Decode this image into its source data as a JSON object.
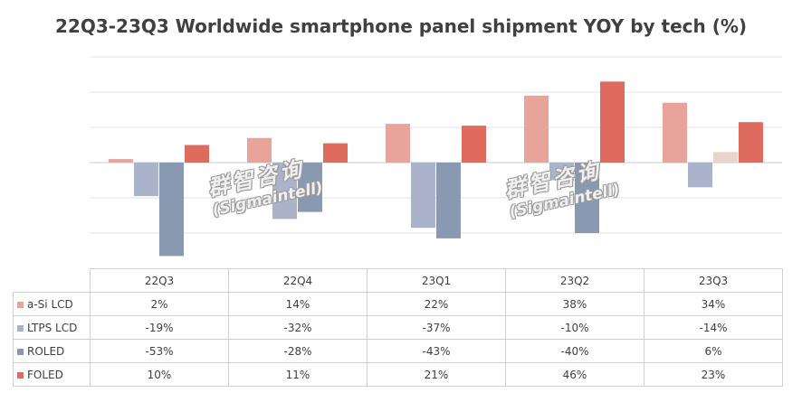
{
  "chart_data": {
    "type": "bar",
    "title": "22Q3-23Q3 Worldwide smartphone panel shipment YOY by tech (%)",
    "categories": [
      "22Q3",
      "22Q4",
      "23Q1",
      "23Q2",
      "23Q3"
    ],
    "series": [
      {
        "name": "a-Si LCD",
        "values": [
          2,
          14,
          22,
          38,
          34
        ],
        "display": [
          "2%",
          "14%",
          "22%",
          "38%",
          "34%"
        ],
        "color": "#e8a49a",
        "color_alt": "#e8a49a"
      },
      {
        "name": "LTPS LCD",
        "values": [
          -19,
          -32,
          -37,
          -10,
          -14
        ],
        "display": [
          "-19%",
          "-32%",
          "-37%",
          "-10%",
          "-14%"
        ],
        "color": "#aab3ca",
        "color_alt": "#aab3ca"
      },
      {
        "name": "ROLED",
        "values": [
          -53,
          -28,
          -43,
          -40,
          6
        ],
        "display": [
          "-53%",
          "-28%",
          "-43%",
          "-40%",
          "6%"
        ],
        "color": "#8a99b2",
        "color_alt": "#e9d5cb"
      },
      {
        "name": "FOLED",
        "values": [
          10,
          11,
          21,
          46,
          23
        ],
        "display": [
          "10%",
          "11%",
          "21%",
          "46%",
          "23%"
        ],
        "color": "#df6a5e",
        "color_alt": "#df6a5e"
      }
    ],
    "ylim": [
      -60,
      60
    ],
    "grid": true,
    "legend": "data table below chart"
  },
  "watermarks": [
    {
      "cn": "群智咨询",
      "en": "(Sigmaintell)"
    },
    {
      "cn": "群智咨询",
      "en": "(Sigmaintell)"
    }
  ]
}
